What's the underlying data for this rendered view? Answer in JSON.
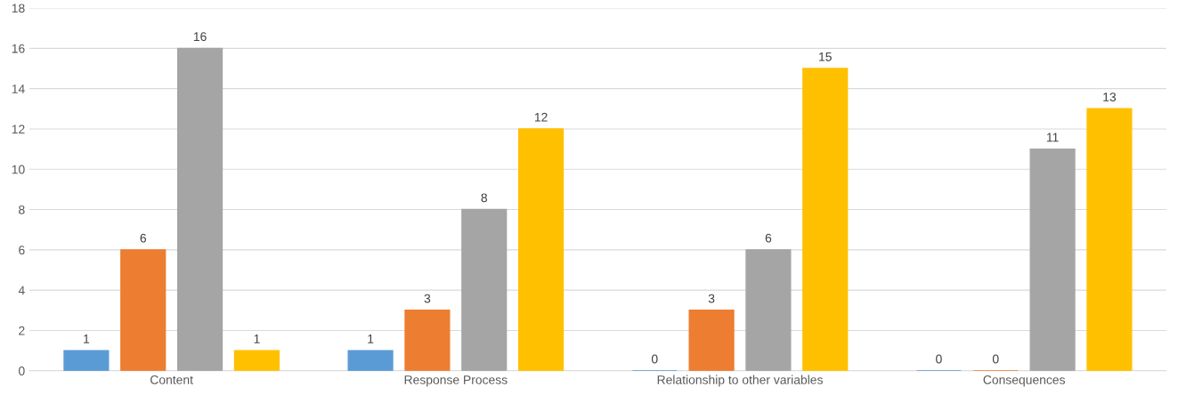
{
  "chart_data": {
    "type": "bar",
    "categories": [
      "Content",
      "Response Process",
      "Relationship to other variables",
      "Consequences"
    ],
    "series": [
      {
        "color": "#5b9bd5",
        "values": [
          1,
          1,
          0,
          0
        ]
      },
      {
        "color": "#ed7d31",
        "values": [
          6,
          3,
          3,
          0
        ]
      },
      {
        "color": "#a5a5a5",
        "values": [
          16,
          8,
          6,
          11
        ]
      },
      {
        "color": "#ffc000",
        "values": [
          1,
          12,
          15,
          13
        ]
      }
    ],
    "ylim": [
      0,
      18
    ],
    "yticks": [
      0,
      2,
      4,
      6,
      8,
      10,
      12,
      14,
      16,
      18
    ],
    "grid": "y",
    "data_labels": true
  }
}
